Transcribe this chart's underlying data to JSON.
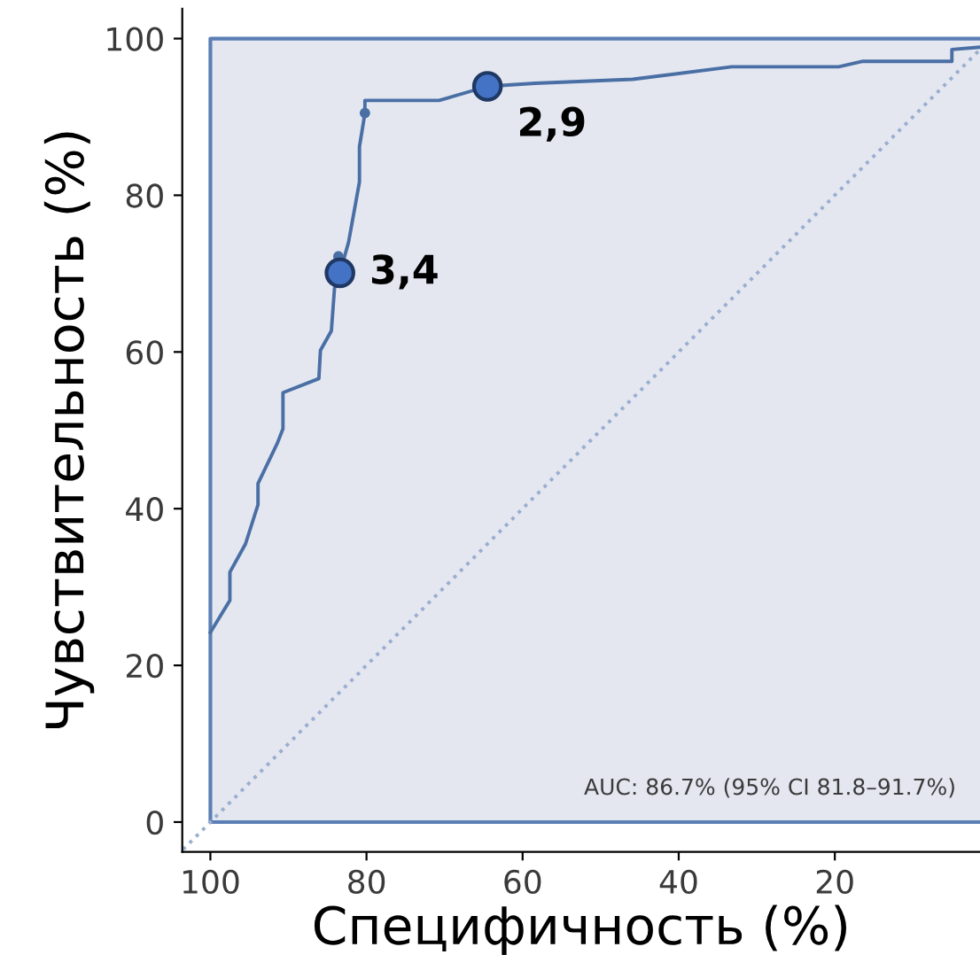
{
  "chart_data": {
    "type": "line",
    "xlabel": "Специфичность (%)",
    "ylabel": "Чувствительность (%)",
    "xlim": [
      103.6,
      1.4
    ],
    "ylim": [
      -3.8,
      103.8
    ],
    "xticks": [
      100,
      80,
      60,
      40,
      20
    ],
    "yticks": [
      0,
      20,
      40,
      60,
      80,
      100
    ],
    "grid": false,
    "bands": [
      {
        "axis": "x",
        "from": 100,
        "to": 0,
        "color": "#e4e7f0"
      }
    ],
    "series": [
      {
        "color": "#9aaed0",
        "line_style": "dotted",
        "marker": "none",
        "x": [
          103.5,
          1.4
        ],
        "values": [
          -3.5,
          98.6
        ]
      },
      {
        "color": "#4a6fa5",
        "line_style": "solid",
        "marker": "none",
        "x": [
          100,
          97.5,
          97.5,
          95.5,
          93.9,
          93.9,
          91.4,
          90.7,
          90.7,
          86.1,
          85.9,
          84.5,
          84.1,
          83.4,
          82.3,
          80.9,
          80.9,
          80.2,
          80.2,
          70.7,
          64.5,
          58.4,
          45.9,
          33.2,
          19.5,
          16.4,
          5.0,
          5.0,
          1.4
        ],
        "values": [
          24.2,
          28.3,
          31.9,
          35.5,
          40.5,
          43.2,
          48.4,
          50.2,
          54.8,
          56.6,
          60.2,
          62.7,
          68.1,
          70.1,
          74.0,
          81.7,
          86.2,
          90.5,
          92.1,
          92.1,
          93.9,
          94.3,
          94.8,
          96.4,
          96.4,
          97.1,
          97.1,
          98.6,
          98.9
        ]
      },
      {
        "type": "scatter",
        "color": "#4a6fa5",
        "marker": "circle",
        "x": [
          83.6,
          80.2
        ],
        "values": [
          72.2,
          90.5
        ]
      },
      {
        "type": "scatter",
        "color": "#4472c4",
        "marker": "circle",
        "x": [
          83.4,
          64.5
        ],
        "values": [
          70.1,
          93.9
        ]
      }
    ],
    "annotations": [
      {
        "text": "3,4",
        "x": 83.4,
        "y": 70.1
      },
      {
        "text": "2,9",
        "x": 64.5,
        "y": 93.9
      },
      "AUC: 86.7% (95% CI 81.8–91.7%)"
    ]
  }
}
